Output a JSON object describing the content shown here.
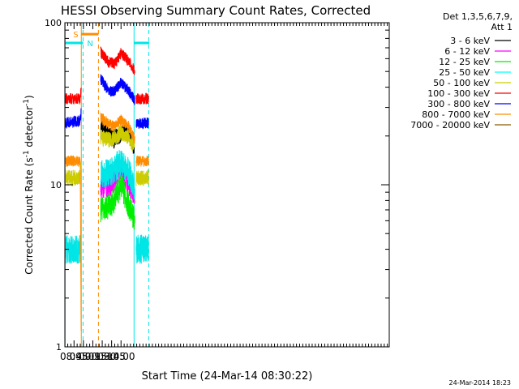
{
  "chart_data": {
    "type": "line",
    "title": "HESSI Observing Summary Count Rates, Corrected",
    "xlabel": "Start Time (24-Mar-14 08:30:22)",
    "ylabel": "Corrected Count Rate (s",
    "ylabel_sup1": "-1",
    "ylabel_mid": " detector",
    "ylabel_sup2": "-1",
    "ylabel_end": ")",
    "y_scale": "log",
    "xlim_min": [
      510.4,
      1028
    ],
    "ylim": [
      1,
      100
    ],
    "y_tick_labels": [
      "1",
      "10",
      "100"
    ],
    "x_ticks_min": [
      525,
      540,
      555,
      570,
      585,
      600
    ],
    "x_tick_labels": [
      "08:45",
      "09:00",
      "09:15",
      "09:30",
      "09:45",
      "10:00"
    ],
    "legend": {
      "header": [
        "Det 1,3,5,6,7,9,",
        "Att 1"
      ],
      "entries": [
        {
          "label": "3 - 6 keV",
          "color": "#000000"
        },
        {
          "label": "6 - 12 keV",
          "color": "#ff00ff"
        },
        {
          "label": "12 - 25 keV",
          "color": "#00ee00"
        },
        {
          "label": "25 - 50 keV",
          "color": "#00ffff"
        },
        {
          "label": "50 - 100 keV",
          "color": "#cccc00"
        },
        {
          "label": "100 - 300 keV",
          "color": "#ff0000"
        },
        {
          "label": "300 - 800 keV",
          "color": "#0000ff"
        },
        {
          "label": "800 - 7000 keV",
          "color": "#ff8c00"
        },
        {
          "label": "7000 - 20000 keV",
          "color": "#8b5a00"
        }
      ]
    },
    "timestamp": "24-Mar-2014 18:23",
    "flags": [
      {
        "label": "S",
        "color": "#ff8c00",
        "start": 536.6,
        "end": 564,
        "level": 85
      },
      {
        "label": "N",
        "color": "#00e5e5",
        "start": 510.4,
        "end": 539.4,
        "level": 75
      },
      {
        "label": "",
        "color": "#00e5e5",
        "start": 621,
        "end": 645,
        "level": 75
      }
    ],
    "vlines": [
      {
        "t": 510.8,
        "color": "#00e5e5",
        "dash": false
      },
      {
        "t": 536.6,
        "color": "#ff8c00",
        "dash": false
      },
      {
        "t": 539.4,
        "color": "#00e5e5",
        "dash": true
      },
      {
        "t": 564,
        "color": "#ff8c00",
        "dash": true
      },
      {
        "t": 620.8,
        "color": "#00e5e5",
        "dash": false
      },
      {
        "t": 644.2,
        "color": "#00e5e5",
        "dash": true
      }
    ],
    "series": [
      {
        "name": "3 - 6 keV",
        "color": "#000000",
        "noise": 0.06,
        "segments": [
          [
            [
              567.5,
              22
            ],
            [
              590,
              19
            ],
            [
              604,
              22
            ],
            [
              612,
              21
            ],
            [
              621,
              17
            ]
          ]
        ]
      },
      {
        "name": "6 - 12 keV",
        "color": "#ff00ff",
        "noise": 0.07,
        "segments": [
          [
            [
              567.5,
              9.5
            ],
            [
              585,
              10
            ],
            [
              600,
              12.5
            ],
            [
              612,
              10
            ],
            [
              622,
              8.5
            ]
          ]
        ]
      },
      {
        "name": "12 - 25 keV",
        "color": "#00ee00",
        "noise": 0.08,
        "segments": [
          [
            [
              567.5,
              7
            ],
            [
              585,
              7.5
            ],
            [
              600,
              10
            ],
            [
              612,
              7.5
            ],
            [
              622,
              6
            ]
          ]
        ]
      },
      {
        "name": "25 - 50 keV",
        "color": "#00e5e5",
        "noise": 0.09,
        "segments": [
          [
            [
              510.8,
              4
            ],
            [
              535,
              4
            ],
            [
              536.5,
              5.5
            ]
          ],
          [
            [
              567.5,
              11.5
            ],
            [
              585,
              12
            ],
            [
              600,
              14
            ],
            [
              612,
              12
            ],
            [
              622,
              9.5
            ]
          ],
          [
            [
              624,
              4
            ],
            [
              644,
              4
            ]
          ]
        ]
      },
      {
        "name": "50 - 100 keV",
        "color": "#cccc00",
        "noise": 0.05,
        "segments": [
          [
            [
              510.8,
              11
            ],
            [
              535,
              11
            ],
            [
              536.5,
              13
            ]
          ],
          [
            [
              567.5,
              19.5
            ],
            [
              585,
              19
            ],
            [
              600,
              21
            ],
            [
              612,
              19.5
            ],
            [
              622,
              16.5
            ]
          ],
          [
            [
              624,
              11
            ],
            [
              644,
              11
            ]
          ]
        ]
      },
      {
        "name": "100 - 300 keV",
        "color": "#ff0000",
        "noise": 0.035,
        "segments": [
          [
            [
              510.8,
              34
            ],
            [
              535,
              34
            ],
            [
              536.5,
              40
            ]
          ],
          [
            [
              567.5,
              66
            ],
            [
              580,
              57
            ],
            [
              590,
              56
            ],
            [
              600,
              65
            ],
            [
              612,
              58
            ],
            [
              622,
              50
            ]
          ],
          [
            [
              624,
              34
            ],
            [
              644,
              34
            ]
          ]
        ]
      },
      {
        "name": "300 - 800 keV",
        "color": "#0000ff",
        "noise": 0.035,
        "segments": [
          [
            [
              510.8,
              24
            ],
            [
              535,
              25
            ],
            [
              536.5,
              29
            ]
          ],
          [
            [
              567.5,
              45
            ],
            [
              580,
              38
            ],
            [
              590,
              38
            ],
            [
              600,
              43
            ],
            [
              612,
              38
            ],
            [
              622,
              33
            ]
          ],
          [
            [
              624,
              24
            ],
            [
              644,
              24
            ]
          ]
        ]
      },
      {
        "name": "800 - 7000 keV",
        "color": "#ff8c00",
        "noise": 0.035,
        "segments": [
          [
            [
              510.8,
              14
            ],
            [
              535,
              14
            ],
            [
              536.5,
              1
            ]
          ],
          [
            [
              567.5,
              26
            ],
            [
              585,
              23
            ],
            [
              600,
              25
            ],
            [
              612,
              23
            ],
            [
              622,
              19
            ]
          ],
          [
            [
              624,
              14
            ],
            [
              644,
              14
            ]
          ]
        ]
      }
    ]
  }
}
